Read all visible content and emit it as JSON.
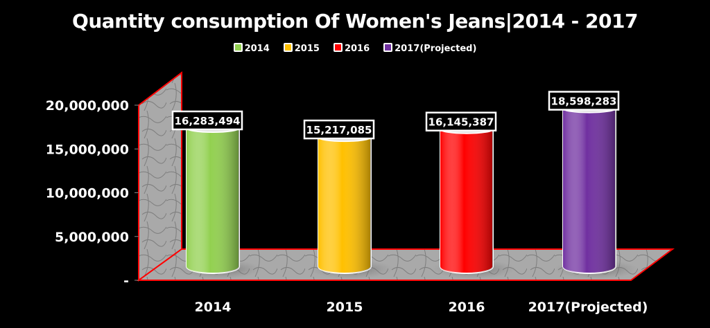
{
  "chart_data": {
    "type": "bar",
    "title": "Quantity consumption Of Women's Jeans|2014 - 2017",
    "categories": [
      "2014",
      "2015",
      "2016",
      "2017(Projected)"
    ],
    "values": [
      16283494,
      15217085,
      16145387,
      18598283
    ],
    "data_labels": [
      "16,283,494",
      "15,217,085",
      "16,145,387",
      "18,598,283"
    ],
    "colors": [
      "#92d050",
      "#ffc000",
      "#ff0000",
      "#7030a0"
    ],
    "legend": [
      "2014",
      "2015",
      "2016",
      "2017(Projected)"
    ],
    "legend_position": "top",
    "ylim": [
      0,
      20000000
    ],
    "yticks": [
      0,
      5000000,
      10000000,
      15000000,
      20000000
    ],
    "ytick_labels": [
      "-",
      "5,000,000",
      "10,000,000",
      "15,000,000",
      "20,000,000"
    ],
    "xlabel": "",
    "ylabel": "",
    "grid": false
  }
}
